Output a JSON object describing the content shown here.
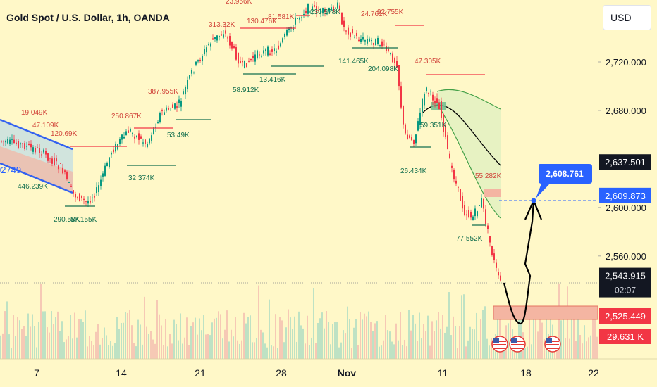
{
  "header": {
    "title": "Gold Spot / U.S. Dollar, 1h, OANDA"
  },
  "toolbar": {
    "currency": "USD"
  },
  "chart_data": {
    "type": "candlestick",
    "symbol": "Gold Spot / U.S. Dollar",
    "interval": "1h",
    "exchange": "OANDA",
    "y_ticks": [
      "2,720.000",
      "2,680.000",
      "2,600.000",
      "2,560.000"
    ],
    "y_range": [
      2500,
      2800
    ],
    "x_ticks": [
      "7",
      "14",
      "21",
      "28",
      "Nov",
      "11",
      "18",
      "22"
    ],
    "price_levels": [
      {
        "label": "2,637.501",
        "price": 2637.501,
        "style": "dark"
      },
      {
        "label": "2,609.873",
        "price": 2609.873,
        "style": "blue"
      },
      {
        "label": "2,543.915",
        "price": 2543.915,
        "style": "dark",
        "countdown": "02:07"
      },
      {
        "label": "2,525.449",
        "price": 2525.449,
        "style": "red"
      },
      {
        "label": "29.631 K",
        "style": "red-volume"
      }
    ],
    "target_callout": {
      "label": "2,608.761",
      "price": 2608.761
    },
    "volume_annotations": [
      "23.956K",
      "81.581K",
      "313.32K",
      "130.476K",
      "230.578K",
      "24.761K",
      "92.755K",
      "141.465K",
      "204.098K",
      "58.912K",
      "13.416K",
      "47.305K",
      "387.955K",
      "250.867K",
      "53.49K",
      "19.049K",
      "47.109K",
      "120.69K",
      "32.374K",
      "446.239K",
      "290.58K",
      "57.155K",
      "59.351K",
      "26.434K",
      "55.282K",
      "77.552K"
    ],
    "side_label": "02749",
    "legend": "none"
  }
}
